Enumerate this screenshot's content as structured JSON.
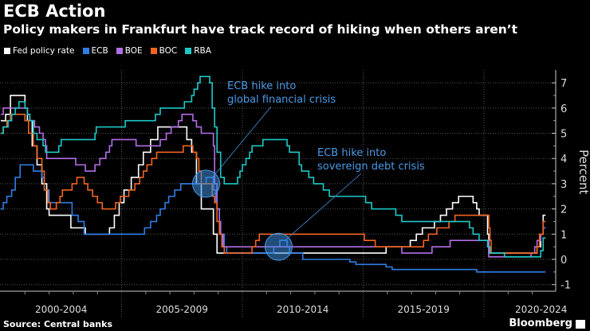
{
  "title": "ECB Action",
  "subtitle": "Policy makers in Frankfurt have track record of hiking when others aren’t",
  "source": "Source: Central banks",
  "brand": "Bloomberg",
  "chart_data": {
    "type": "line",
    "step": true,
    "ylabel": "Percent",
    "ylim": [
      -1.2,
      7.4
    ],
    "yticks": [
      -1,
      0,
      1,
      2,
      3,
      4,
      5,
      6,
      7
    ],
    "xlim": [
      2000,
      2022.8
    ],
    "x_period_labels": [
      "2000-2004",
      "2005-2009",
      "2010-2014",
      "2015-2019",
      "2020-2024"
    ],
    "grid": true,
    "legend_placement": "top-left",
    "annotations": [
      {
        "text_line1": "ECB hike into",
        "text_line2": "global financial crisis",
        "x": 2008.5,
        "y": 3.0
      },
      {
        "text_line1": "ECB hike into",
        "text_line2": "sovereign debt crisis",
        "x": 2011.5,
        "y": 0.5
      }
    ],
    "series": [
      {
        "name": "Fed policy rate",
        "color": "#ffffff",
        "points": [
          [
            2000,
            5.5
          ],
          [
            2000.2,
            5.75
          ],
          [
            2000.4,
            6.5
          ],
          [
            2001.0,
            6.0
          ],
          [
            2001.1,
            5.5
          ],
          [
            2001.3,
            4.5
          ],
          [
            2001.5,
            3.75
          ],
          [
            2001.7,
            3.0
          ],
          [
            2001.9,
            2.0
          ],
          [
            2002.0,
            1.75
          ],
          [
            2002.9,
            1.25
          ],
          [
            2003.5,
            1.0
          ],
          [
            2004.5,
            1.25
          ],
          [
            2004.7,
            1.75
          ],
          [
            2004.9,
            2.25
          ],
          [
            2005.1,
            2.75
          ],
          [
            2005.4,
            3.25
          ],
          [
            2005.7,
            3.75
          ],
          [
            2005.9,
            4.25
          ],
          [
            2006.2,
            4.75
          ],
          [
            2006.5,
            5.25
          ],
          [
            2007.7,
            4.75
          ],
          [
            2007.9,
            4.25
          ],
          [
            2008.1,
            3.0
          ],
          [
            2008.3,
            2.0
          ],
          [
            2008.8,
            1.0
          ],
          [
            2008.95,
            0.25
          ],
          [
            2015.95,
            0.5
          ],
          [
            2016.95,
            0.75
          ],
          [
            2017.2,
            1.0
          ],
          [
            2017.45,
            1.25
          ],
          [
            2017.95,
            1.5
          ],
          [
            2018.2,
            1.75
          ],
          [
            2018.45,
            2.0
          ],
          [
            2018.7,
            2.25
          ],
          [
            2018.95,
            2.5
          ],
          [
            2019.55,
            2.25
          ],
          [
            2019.7,
            2.0
          ],
          [
            2019.8,
            1.75
          ],
          [
            2020.15,
            1.0
          ],
          [
            2020.2,
            0.25
          ],
          [
            2022.2,
            0.5
          ],
          [
            2022.35,
            1.0
          ],
          [
            2022.45,
            1.75
          ],
          [
            2022.55,
            1.75
          ]
        ]
      },
      {
        "name": "ECB",
        "color": "#2f7ee6",
        "points": [
          [
            2000,
            2.0
          ],
          [
            2000.1,
            2.25
          ],
          [
            2000.25,
            2.5
          ],
          [
            2000.45,
            2.75
          ],
          [
            2000.6,
            3.25
          ],
          [
            2000.8,
            3.75
          ],
          [
            2001.35,
            3.5
          ],
          [
            2001.7,
            3.25
          ],
          [
            2001.8,
            2.75
          ],
          [
            2002.0,
            2.25
          ],
          [
            2002.95,
            1.75
          ],
          [
            2003.2,
            1.5
          ],
          [
            2003.45,
            1.0
          ],
          [
            2005.95,
            1.25
          ],
          [
            2006.2,
            1.5
          ],
          [
            2006.45,
            1.75
          ],
          [
            2006.6,
            2.0
          ],
          [
            2006.8,
            2.25
          ],
          [
            2006.95,
            2.5
          ],
          [
            2007.2,
            2.75
          ],
          [
            2007.45,
            3.0
          ],
          [
            2008.5,
            3.25
          ],
          [
            2008.8,
            2.75
          ],
          [
            2008.9,
            2.25
          ],
          [
            2008.95,
            2.0
          ],
          [
            2009.05,
            1.0
          ],
          [
            2009.25,
            0.5
          ],
          [
            2009.35,
            0.25
          ],
          [
            2011.3,
            0.5
          ],
          [
            2011.55,
            0.75
          ],
          [
            2011.85,
            0.5
          ],
          [
            2011.95,
            0.25
          ],
          [
            2012.5,
            0.0
          ],
          [
            2014.45,
            -0.1
          ],
          [
            2014.7,
            -0.2
          ],
          [
            2015.95,
            -0.3
          ],
          [
            2016.2,
            -0.4
          ],
          [
            2019.7,
            -0.5
          ],
          [
            2022.55,
            -0.5
          ]
        ]
      },
      {
        "name": "BOE",
        "color": "#b36ee6",
        "points": [
          [
            2000,
            5.75
          ],
          [
            2000.1,
            6.0
          ],
          [
            2001.1,
            5.75
          ],
          [
            2001.2,
            5.5
          ],
          [
            2001.4,
            5.25
          ],
          [
            2001.6,
            5.0
          ],
          [
            2001.75,
            4.75
          ],
          [
            2001.85,
            4.5
          ],
          [
            2001.9,
            4.0
          ],
          [
            2003.1,
            3.75
          ],
          [
            2003.5,
            3.5
          ],
          [
            2003.9,
            3.75
          ],
          [
            2004.1,
            4.0
          ],
          [
            2004.35,
            4.25
          ],
          [
            2004.5,
            4.5
          ],
          [
            2004.6,
            4.75
          ],
          [
            2005.6,
            4.5
          ],
          [
            2006.6,
            4.75
          ],
          [
            2006.85,
            5.0
          ],
          [
            2007.05,
            5.25
          ],
          [
            2007.35,
            5.5
          ],
          [
            2007.5,
            5.75
          ],
          [
            2007.95,
            5.5
          ],
          [
            2008.1,
            5.25
          ],
          [
            2008.3,
            5.0
          ],
          [
            2008.8,
            4.5
          ],
          [
            2008.85,
            3.0
          ],
          [
            2008.95,
            2.0
          ],
          [
            2009.05,
            1.5
          ],
          [
            2009.1,
            1.0
          ],
          [
            2009.2,
            0.5
          ],
          [
            2016.6,
            0.25
          ],
          [
            2017.85,
            0.5
          ],
          [
            2018.6,
            0.75
          ],
          [
            2020.2,
            0.1
          ],
          [
            2021.95,
            0.25
          ],
          [
            2022.1,
            0.5
          ],
          [
            2022.2,
            0.75
          ],
          [
            2022.35,
            1.0
          ],
          [
            2022.45,
            1.25
          ],
          [
            2022.55,
            1.25
          ]
        ]
      },
      {
        "name": "BOC",
        "color": "#f0641e",
        "points": [
          [
            2000,
            5.0
          ],
          [
            2000.1,
            5.25
          ],
          [
            2000.25,
            5.5
          ],
          [
            2000.4,
            5.75
          ],
          [
            2001.0,
            5.5
          ],
          [
            2001.15,
            5.0
          ],
          [
            2001.35,
            4.5
          ],
          [
            2001.5,
            4.0
          ],
          [
            2001.7,
            3.5
          ],
          [
            2001.8,
            2.75
          ],
          [
            2001.95,
            2.25
          ],
          [
            2002.05,
            2.0
          ],
          [
            2002.3,
            2.25
          ],
          [
            2002.45,
            2.5
          ],
          [
            2002.55,
            2.75
          ],
          [
            2002.95,
            3.0
          ],
          [
            2003.15,
            3.25
          ],
          [
            2003.45,
            3.0
          ],
          [
            2003.6,
            2.75
          ],
          [
            2003.8,
            2.5
          ],
          [
            2004.0,
            2.25
          ],
          [
            2004.2,
            2.0
          ],
          [
            2004.75,
            2.25
          ],
          [
            2004.95,
            2.5
          ],
          [
            2005.3,
            2.75
          ],
          [
            2005.55,
            3.0
          ],
          [
            2005.75,
            3.25
          ],
          [
            2005.9,
            3.5
          ],
          [
            2006.05,
            3.75
          ],
          [
            2006.25,
            4.0
          ],
          [
            2006.45,
            4.25
          ],
          [
            2007.55,
            4.5
          ],
          [
            2007.95,
            4.25
          ],
          [
            2008.1,
            4.0
          ],
          [
            2008.2,
            3.5
          ],
          [
            2008.3,
            3.0
          ],
          [
            2008.75,
            2.5
          ],
          [
            2008.85,
            2.25
          ],
          [
            2008.95,
            1.5
          ],
          [
            2009.05,
            1.0
          ],
          [
            2009.15,
            0.5
          ],
          [
            2009.25,
            0.25
          ],
          [
            2010.4,
            0.5
          ],
          [
            2010.55,
            0.75
          ],
          [
            2010.7,
            1.0
          ],
          [
            2015.05,
            0.75
          ],
          [
            2015.5,
            0.5
          ],
          [
            2017.5,
            0.75
          ],
          [
            2017.7,
            1.0
          ],
          [
            2018.05,
            1.25
          ],
          [
            2018.55,
            1.5
          ],
          [
            2018.8,
            1.75
          ],
          [
            2020.2,
            1.25
          ],
          [
            2020.25,
            0.75
          ],
          [
            2020.3,
            0.25
          ],
          [
            2022.2,
            0.5
          ],
          [
            2022.3,
            1.0
          ],
          [
            2022.45,
            1.5
          ],
          [
            2022.55,
            1.5
          ]
        ]
      },
      {
        "name": "RBA",
        "color": "#1ec8c8",
        "points": [
          [
            2000,
            5.0
          ],
          [
            2000.1,
            5.25
          ],
          [
            2000.3,
            5.5
          ],
          [
            2000.45,
            5.75
          ],
          [
            2000.6,
            6.0
          ],
          [
            2000.75,
            6.25
          ],
          [
            2001.0,
            6.0
          ],
          [
            2001.1,
            5.75
          ],
          [
            2001.2,
            5.5
          ],
          [
            2001.35,
            5.0
          ],
          [
            2001.5,
            4.75
          ],
          [
            2001.75,
            4.5
          ],
          [
            2001.85,
            4.25
          ],
          [
            2002.4,
            4.5
          ],
          [
            2002.5,
            4.75
          ],
          [
            2003.9,
            5.0
          ],
          [
            2003.95,
            5.25
          ],
          [
            2005.15,
            5.5
          ],
          [
            2006.4,
            5.75
          ],
          [
            2006.6,
            6.0
          ],
          [
            2007.6,
            6.25
          ],
          [
            2007.9,
            6.5
          ],
          [
            2008.0,
            6.75
          ],
          [
            2008.15,
            7.0
          ],
          [
            2008.25,
            7.25
          ],
          [
            2008.65,
            7.0
          ],
          [
            2008.75,
            6.0
          ],
          [
            2008.85,
            5.25
          ],
          [
            2008.95,
            4.25
          ],
          [
            2009.1,
            3.25
          ],
          [
            2009.25,
            3.0
          ],
          [
            2009.8,
            3.25
          ],
          [
            2009.9,
            3.5
          ],
          [
            2010.0,
            3.75
          ],
          [
            2010.15,
            4.0
          ],
          [
            2010.3,
            4.25
          ],
          [
            2010.4,
            4.5
          ],
          [
            2010.85,
            4.75
          ],
          [
            2011.85,
            4.5
          ],
          [
            2011.95,
            4.25
          ],
          [
            2012.35,
            3.75
          ],
          [
            2012.45,
            3.5
          ],
          [
            2012.75,
            3.25
          ],
          [
            2012.95,
            3.0
          ],
          [
            2013.35,
            2.75
          ],
          [
            2013.6,
            2.5
          ],
          [
            2015.1,
            2.25
          ],
          [
            2015.35,
            2.0
          ],
          [
            2016.35,
            1.75
          ],
          [
            2016.6,
            1.5
          ],
          [
            2019.4,
            1.25
          ],
          [
            2019.55,
            1.0
          ],
          [
            2019.8,
            0.75
          ],
          [
            2020.15,
            0.5
          ],
          [
            2020.25,
            0.25
          ],
          [
            2020.85,
            0.1
          ],
          [
            2022.35,
            0.35
          ],
          [
            2022.45,
            0.85
          ],
          [
            2022.55,
            0.85
          ]
        ]
      }
    ]
  }
}
